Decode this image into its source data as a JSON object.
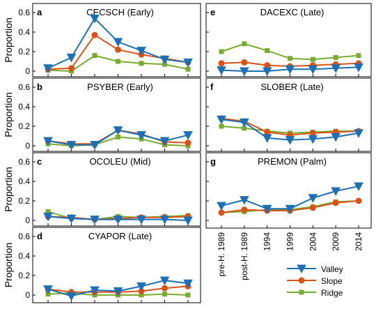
{
  "figure": {
    "y_axis_label": "Proportion",
    "x_tick_labels": [
      "pre-H. 1989",
      "post-H. 1989",
      "1994",
      "1999",
      "2004",
      "2009",
      "2014"
    ],
    "y_tick_labels": [
      "0",
      "0.2",
      "0.4",
      "0.6"
    ],
    "legend": {
      "placement": "bottom-right",
      "entries": [
        "Valley",
        "Slope",
        "Ridge"
      ]
    },
    "colors": {
      "Valley": "#1f6fb4",
      "Slope": "#d95319",
      "Ridge": "#77ac30"
    }
  },
  "chart_data": [
    {
      "type": "line",
      "letter": "a",
      "title": "CECSCH (Early)",
      "ylim": [
        -0.05,
        0.65
      ],
      "x": [
        "pre-H. 1989",
        "post-H. 1989",
        "1994",
        "1999",
        "2004",
        "2009",
        "2014"
      ],
      "series": [
        {
          "name": "Valley",
          "values": [
            0.03,
            0.14,
            0.54,
            0.3,
            0.21,
            0.12,
            0.09
          ]
        },
        {
          "name": "Slope",
          "values": [
            0.02,
            0.03,
            0.37,
            0.22,
            0.17,
            0.13,
            0.09
          ]
        },
        {
          "name": "Ridge",
          "values": [
            0.01,
            0.0,
            0.16,
            0.1,
            0.08,
            0.07,
            0.02
          ]
        }
      ]
    },
    {
      "type": "line",
      "letter": "b",
      "title": "PSYBER (Early)",
      "ylim": [
        -0.05,
        0.65
      ],
      "x": [
        "pre-H. 1989",
        "post-H. 1989",
        "1994",
        "1999",
        "2004",
        "2009",
        "2014"
      ],
      "series": [
        {
          "name": "Valley",
          "values": [
            0.05,
            0.01,
            0.01,
            0.16,
            0.11,
            0.05,
            0.11
          ]
        },
        {
          "name": "Slope",
          "values": [
            0.05,
            0.02,
            0.02,
            0.16,
            0.12,
            0.04,
            0.03
          ]
        },
        {
          "name": "Ridge",
          "values": [
            0.02,
            0.0,
            0.01,
            0.09,
            0.07,
            0.01,
            0.0
          ]
        }
      ]
    },
    {
      "type": "line",
      "letter": "c",
      "title": "OCOLEU (Mid)",
      "ylim": [
        -0.05,
        0.65
      ],
      "x": [
        "pre-H. 1989",
        "post-H. 1989",
        "1994",
        "1999",
        "2004",
        "2009",
        "2014"
      ],
      "series": [
        {
          "name": "Valley",
          "values": [
            0.04,
            0.02,
            0.01,
            0.01,
            0.01,
            0.01,
            0.0
          ]
        },
        {
          "name": "Slope",
          "values": [
            0.04,
            0.03,
            0.01,
            0.02,
            0.03,
            0.03,
            0.04
          ]
        },
        {
          "name": "Ridge",
          "values": [
            0.09,
            0.02,
            0.01,
            0.04,
            0.03,
            0.04,
            0.05
          ]
        }
      ]
    },
    {
      "type": "line",
      "letter": "d",
      "title": "CYAPOR (Late)",
      "ylim": [
        -0.05,
        0.65
      ],
      "x": [
        "pre-H. 1989",
        "post-H. 1989",
        "1994",
        "1999",
        "2004",
        "2009",
        "2014"
      ],
      "series": [
        {
          "name": "Valley",
          "values": [
            0.06,
            -0.01,
            0.05,
            0.04,
            0.09,
            0.15,
            0.12
          ]
        },
        {
          "name": "Slope",
          "values": [
            0.06,
            0.03,
            0.03,
            0.03,
            0.04,
            0.07,
            0.09
          ]
        },
        {
          "name": "Ridge",
          "values": [
            0.01,
            0.02,
            0.0,
            0.0,
            0.0,
            0.01,
            0.0
          ]
        }
      ]
    },
    {
      "type": "line",
      "letter": "e",
      "title": "DACEXC (Late)",
      "ylim": [
        -0.05,
        0.65
      ],
      "x": [
        "pre-H. 1989",
        "post-H. 1989",
        "1994",
        "1999",
        "2004",
        "2009",
        "2014"
      ],
      "series": [
        {
          "name": "Valley",
          "values": [
            0.01,
            0.0,
            0.0,
            0.02,
            0.02,
            0.03,
            0.04
          ]
        },
        {
          "name": "Slope",
          "values": [
            0.08,
            0.09,
            0.06,
            0.05,
            0.06,
            0.07,
            0.08
          ]
        },
        {
          "name": "Ridge",
          "values": [
            0.2,
            0.28,
            0.21,
            0.13,
            0.12,
            0.14,
            0.16
          ]
        }
      ]
    },
    {
      "type": "line",
      "letter": "f",
      "title": "SLOBER (Late)",
      "ylim": [
        -0.05,
        0.65
      ],
      "x": [
        "pre-H. 1989",
        "post-H. 1989",
        "1994",
        "1999",
        "2004",
        "2009",
        "2014"
      ],
      "series": [
        {
          "name": "Valley",
          "values": [
            0.27,
            0.24,
            0.08,
            0.06,
            0.07,
            0.09,
            0.13
          ]
        },
        {
          "name": "Slope",
          "values": [
            0.28,
            0.25,
            0.14,
            0.11,
            0.13,
            0.14,
            0.15
          ]
        },
        {
          "name": "Ridge",
          "values": [
            0.2,
            0.18,
            0.15,
            0.13,
            0.14,
            0.15,
            0.15
          ]
        }
      ]
    },
    {
      "type": "line",
      "letter": "g",
      "title": "PREMON (Palm)",
      "ylim": [
        -0.05,
        0.65
      ],
      "x": [
        "pre-H. 1989",
        "post-H. 1989",
        "1994",
        "1999",
        "2004",
        "2009",
        "2014"
      ],
      "series": [
        {
          "name": "Valley",
          "values": [
            0.15,
            0.21,
            0.12,
            0.12,
            0.23,
            0.3,
            0.35
          ]
        },
        {
          "name": "Slope",
          "values": [
            0.08,
            0.11,
            0.1,
            0.1,
            0.13,
            0.18,
            0.2
          ]
        },
        {
          "name": "Ridge",
          "values": [
            0.08,
            0.09,
            0.11,
            0.11,
            0.14,
            0.19,
            0.2
          ]
        }
      ]
    }
  ]
}
